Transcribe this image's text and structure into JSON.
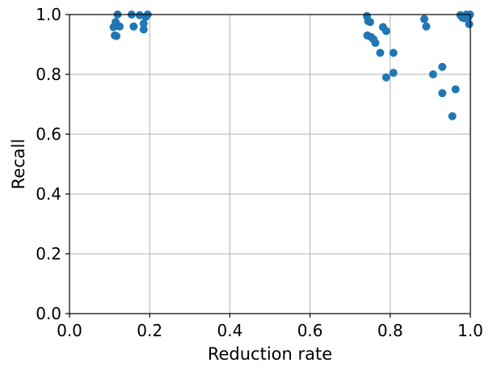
{
  "chart_data": {
    "type": "scatter",
    "title": "",
    "xlabel": "Reduction rate",
    "ylabel": "Recall",
    "xlim": [
      0.0,
      1.0
    ],
    "ylim": [
      0.0,
      1.0
    ],
    "xticks": [
      "0.0",
      "0.2",
      "0.4",
      "0.6",
      "0.8",
      "1.0"
    ],
    "yticks": [
      "0.0",
      "0.2",
      "0.4",
      "0.6",
      "0.8",
      "1.0"
    ],
    "grid": true,
    "marker_color": "#1f77b4",
    "series": [
      {
        "points": [
          [
            0.11,
            0.958
          ],
          [
            0.115,
            0.975
          ],
          [
            0.113,
            0.93
          ],
          [
            0.117,
            0.928
          ],
          [
            0.12,
            1.0
          ],
          [
            0.125,
            0.96
          ],
          [
            0.155,
            1.0
          ],
          [
            0.16,
            0.96
          ],
          [
            0.175,
            0.998
          ],
          [
            0.185,
            0.97
          ],
          [
            0.185,
            0.95
          ],
          [
            0.19,
            0.992
          ],
          [
            0.195,
            1.0
          ],
          [
            0.742,
            0.995
          ],
          [
            0.745,
            0.978
          ],
          [
            0.75,
            0.975
          ],
          [
            0.743,
            0.93
          ],
          [
            0.752,
            0.925
          ],
          [
            0.758,
            0.918
          ],
          [
            0.763,
            0.905
          ],
          [
            0.775,
            0.872
          ],
          [
            0.782,
            0.958
          ],
          [
            0.79,
            0.945
          ],
          [
            0.79,
            0.79
          ],
          [
            0.808,
            0.872
          ],
          [
            0.808,
            0.805
          ],
          [
            0.885,
            0.985
          ],
          [
            0.89,
            0.96
          ],
          [
            0.907,
            0.8
          ],
          [
            0.93,
            0.825
          ],
          [
            0.93,
            0.737
          ],
          [
            0.955,
            0.66
          ],
          [
            0.963,
            0.75
          ],
          [
            0.975,
            0.998
          ],
          [
            0.98,
            0.99
          ],
          [
            0.985,
            0.988
          ],
          [
            0.99,
            1.0
          ],
          [
            0.995,
            0.992
          ],
          [
            0.997,
            0.968
          ],
          [
            0.999,
            1.0
          ]
        ]
      }
    ]
  }
}
